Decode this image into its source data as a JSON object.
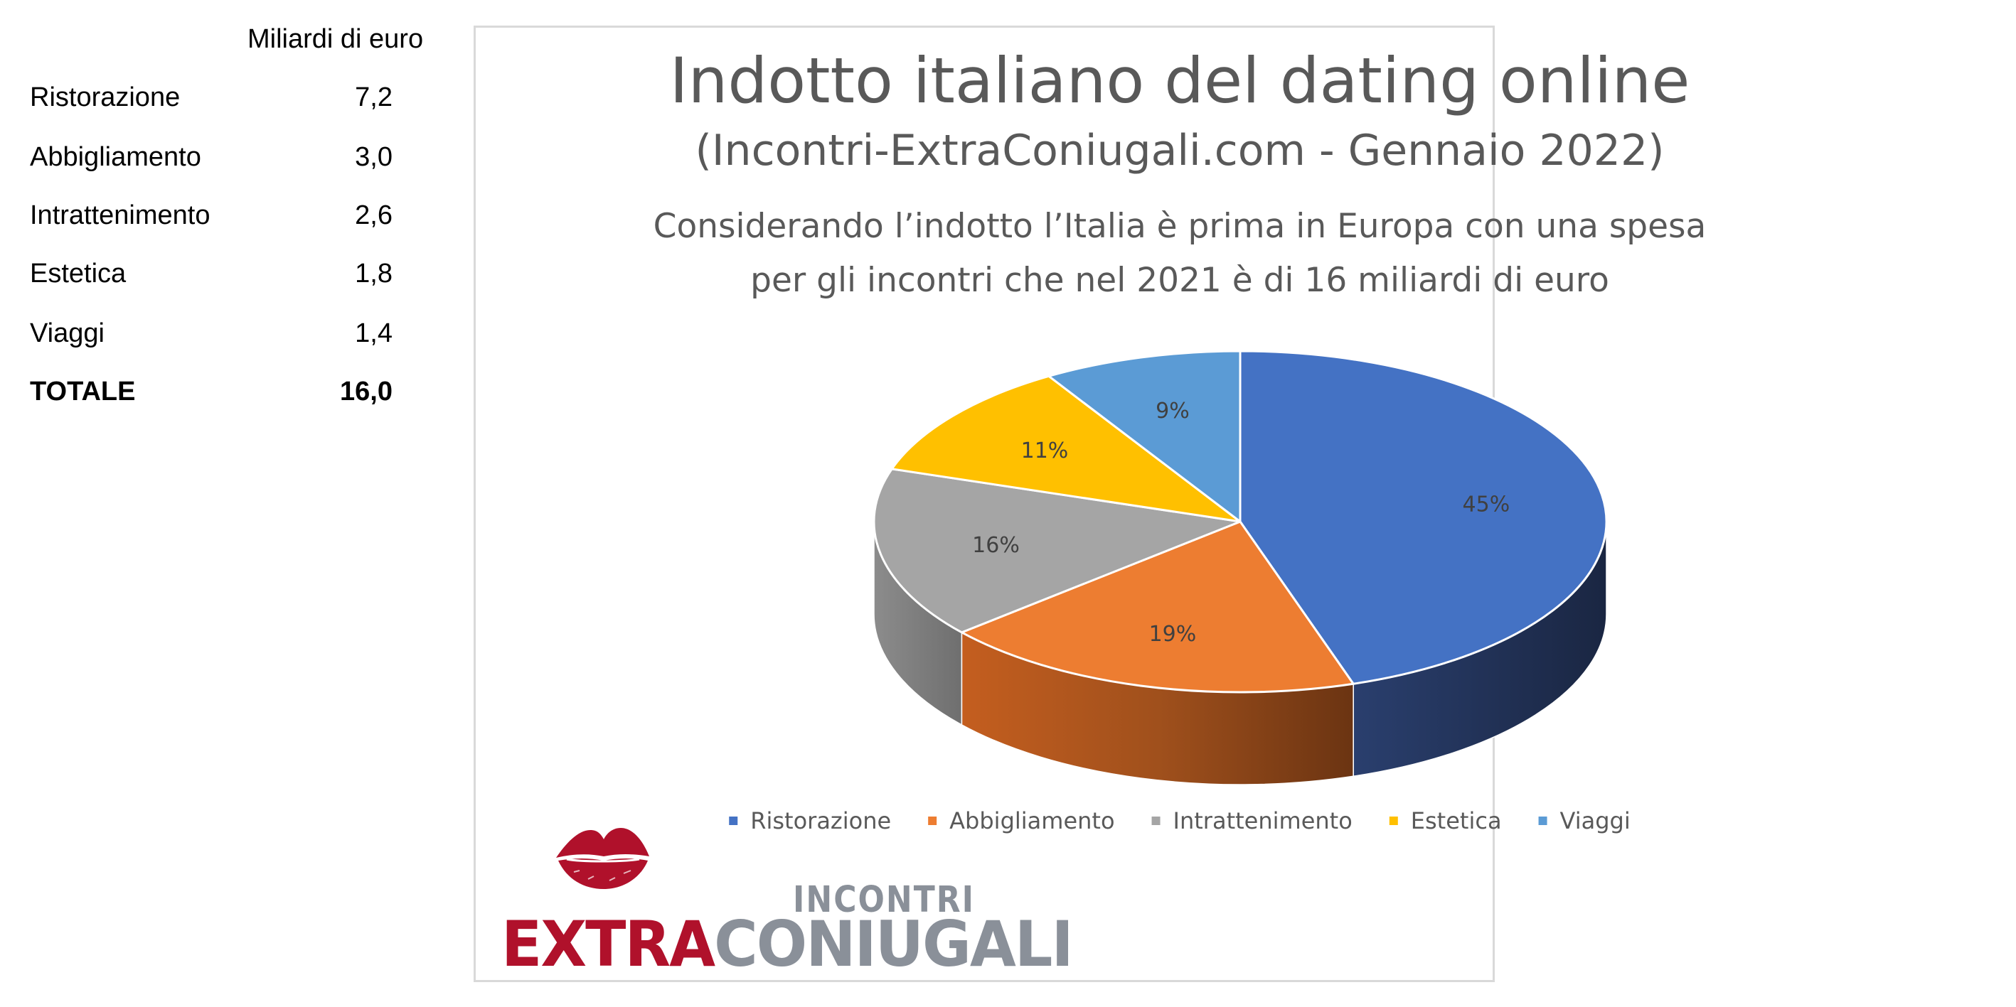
{
  "table": {
    "header": "Miliardi di euro",
    "rows": [
      {
        "label": "Ristorazione",
        "value": "7,2"
      },
      {
        "label": "Abbigliamento",
        "value": "3,0"
      },
      {
        "label": "Intrattenimento",
        "value": "2,6"
      },
      {
        "label": "Estetica",
        "value": "1,8"
      },
      {
        "label": "Viaggi",
        "value": "1,4"
      }
    ],
    "total": {
      "label": "TOTALE",
      "value": "16,0"
    }
  },
  "chart_data": {
    "type": "pie",
    "title": "Indotto italiano del dating online",
    "subtitle": "(Incontri-ExtraConiugali.com - Gennaio 2022)",
    "annotation_lines": [
      "Considerando  l’indotto l’Italia è prima in Europa con una spesa",
      "per gli incontri che nel 2021 è di 16 miliardi di euro"
    ],
    "categories": [
      "Ristorazione",
      "Abbigliamento",
      "Intrattenimento",
      "Estetica",
      "Viaggi"
    ],
    "values": [
      7.2,
      3.0,
      2.6,
      1.8,
      1.4
    ],
    "percent_labels": [
      "45%",
      "19%",
      "16%",
      "11%",
      "9%"
    ],
    "colors": [
      "#4472c4",
      "#ed7d31",
      "#a5a5a5",
      "#ffc000",
      "#5b9bd5"
    ],
    "side_colors": [
      "#1f2d4f",
      "#7a3b14",
      "#7b7b7b",
      "#a37a00",
      "#2e5f8a"
    ],
    "style": "3d",
    "legend_position": "bottom"
  },
  "logo": {
    "word_small": "INCONTRI",
    "word_red": "EXTRA",
    "word_grey": "CONIUGALI",
    "lips_color": "#b0112b"
  }
}
